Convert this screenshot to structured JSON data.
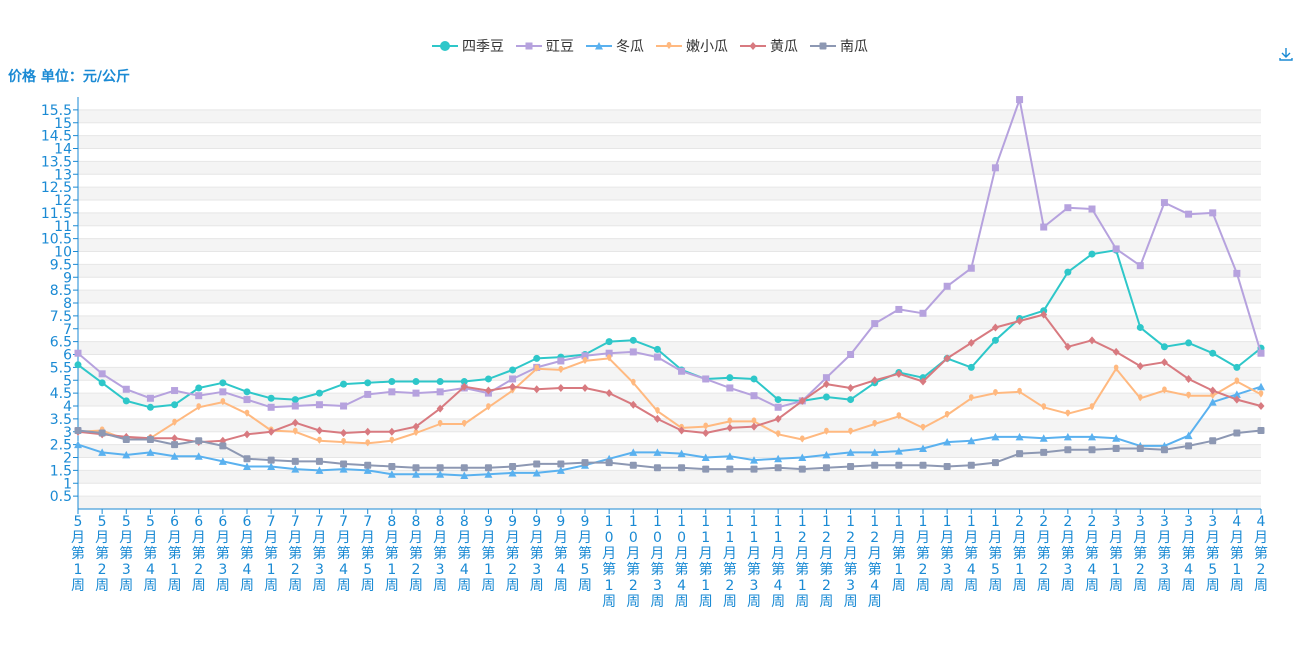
{
  "unit_label": "价格 单位：元/公斤",
  "download_icon": "download-icon",
  "colors": {
    "axis": "#1a8ad4",
    "grid_band": "#f4f4f4",
    "grid_line": "#e6e6e6"
  },
  "chart_data": {
    "type": "line",
    "title": "",
    "xlabel": "",
    "ylabel": "价格 单位：元/公斤",
    "ylim": [
      0,
      16
    ],
    "yticks": [
      0.5,
      1,
      1.5,
      2,
      2.5,
      3,
      3.5,
      4,
      4.5,
      5,
      5.5,
      6,
      6.5,
      7,
      7.5,
      8,
      8.5,
      9,
      9.5,
      10,
      10.5,
      11,
      11.5,
      12,
      12.5,
      13,
      13.5,
      14,
      14.5,
      15,
      15.5
    ],
    "grid": true,
    "legend_position": "top-center",
    "categories": [
      "5月第1周",
      "5月第2周",
      "5月第3周",
      "5月第4周",
      "6月第1周",
      "6月第2周",
      "6月第3周",
      "6月第4周",
      "7月第1周",
      "7月第2周",
      "7月第3周",
      "7月第4周",
      "7月第5周",
      "8月第1周",
      "8月第2周",
      "8月第3周",
      "8月第4周",
      "9月第1周",
      "9月第2周",
      "9月第3周",
      "9月第4周",
      "9月第5周",
      "10月第1周",
      "10月第2周",
      "10月第3周",
      "10月第4周",
      "11月第1周",
      "11月第2周",
      "11月第3周",
      "11月第4周",
      "12月第1周",
      "12月第2周",
      "12月第3周",
      "12月第4周",
      "1月第1周",
      "1月第2周",
      "1月第3周",
      "1月第4周",
      "1月第5周",
      "2月第1周",
      "2月第2周",
      "2月第3周",
      "2月第4周",
      "3月第1周",
      "3月第2周",
      "3月第3周",
      "3月第4周",
      "3月第5周",
      "4月第1周",
      "4月第2周"
    ],
    "series": [
      {
        "name": "四季豆",
        "color": "#2ec7c9",
        "marker": "circle",
        "values": [
          5.6,
          4.9,
          4.2,
          3.95,
          4.05,
          4.7,
          4.9,
          4.55,
          4.3,
          4.25,
          4.5,
          4.85,
          4.9,
          4.95,
          4.95,
          4.95,
          4.95,
          5.05,
          5.4,
          5.85,
          5.9,
          6.0,
          6.5,
          6.55,
          6.2,
          5.4,
          5.05,
          5.1,
          5.05,
          4.25,
          4.2,
          4.35,
          4.25,
          4.9,
          5.3,
          5.1,
          5.85,
          5.5,
          6.55,
          7.4,
          7.7,
          9.2,
          9.9,
          10.05,
          7.05,
          6.3,
          6.45,
          6.05,
          5.5,
          6.25
        ]
      },
      {
        "name": "豇豆",
        "color": "#b6a2de",
        "marker": "rect",
        "values": [
          6.05,
          5.25,
          4.65,
          4.3,
          4.6,
          4.4,
          4.55,
          4.25,
          3.95,
          4.0,
          4.05,
          4.0,
          4.45,
          4.55,
          4.5,
          4.55,
          4.7,
          4.5,
          5.05,
          5.5,
          5.75,
          5.95,
          6.05,
          6.1,
          5.9,
          5.35,
          5.05,
          4.7,
          4.4,
          3.95,
          4.2,
          5.1,
          6.0,
          7.2,
          7.75,
          7.6,
          8.65,
          9.35,
          13.25,
          15.9,
          10.95,
          11.7,
          11.65,
          10.1,
          9.45,
          11.9,
          11.45,
          11.5,
          9.15,
          6.05
        ]
      },
      {
        "name": "冬瓜",
        "color": "#5ab1ef",
        "marker": "triangle",
        "values": [
          2.5,
          2.2,
          2.1,
          2.2,
          2.05,
          2.05,
          1.85,
          1.65,
          1.65,
          1.55,
          1.5,
          1.55,
          1.5,
          1.35,
          1.35,
          1.35,
          1.3,
          1.35,
          1.4,
          1.4,
          1.5,
          1.7,
          1.95,
          2.2,
          2.2,
          2.15,
          2.0,
          2.05,
          1.9,
          1.95,
          2.0,
          2.1,
          2.2,
          2.2,
          2.25,
          2.35,
          2.6,
          2.65,
          2.8,
          2.8,
          2.75,
          2.8,
          2.8,
          2.75,
          2.45,
          2.45,
          2.85,
          4.15,
          4.45,
          4.75
        ]
      },
      {
        "name": "嫩小瓜",
        "color": "#ffb980",
        "marker": "droplet",
        "values": [
          3.0,
          3.05,
          2.7,
          2.75,
          3.35,
          3.95,
          4.15,
          3.7,
          3.05,
          3.0,
          2.65,
          2.6,
          2.55,
          2.65,
          2.95,
          3.3,
          3.3,
          3.95,
          4.6,
          5.45,
          5.4,
          5.75,
          5.85,
          4.9,
          3.8,
          3.15,
          3.2,
          3.4,
          3.4,
          2.9,
          2.7,
          3.0,
          3.0,
          3.3,
          3.6,
          3.15,
          3.65,
          4.3,
          4.5,
          4.55,
          3.95,
          3.7,
          3.95,
          5.45,
          4.3,
          4.6,
          4.4,
          4.4,
          4.95,
          4.45
        ]
      },
      {
        "name": "黄瓜",
        "color": "#d87a80",
        "marker": "diamond",
        "values": [
          3.0,
          2.9,
          2.8,
          2.75,
          2.75,
          2.6,
          2.65,
          2.9,
          3.0,
          3.35,
          3.05,
          2.95,
          3.0,
          3.0,
          3.2,
          3.9,
          4.75,
          4.6,
          4.75,
          4.65,
          4.7,
          4.7,
          4.5,
          4.05,
          3.5,
          3.05,
          2.95,
          3.15,
          3.2,
          3.5,
          4.2,
          4.85,
          4.7,
          5.0,
          5.25,
          4.95,
          5.85,
          6.45,
          7.05,
          7.3,
          7.55,
          6.3,
          6.55,
          6.1,
          5.55,
          5.7,
          5.05,
          4.6,
          4.25,
          4.0
        ]
      },
      {
        "name": "南瓜",
        "color": "#8d98b3",
        "marker": "emptyRect",
        "values": [
          3.05,
          2.95,
          2.7,
          2.7,
          2.5,
          2.65,
          2.45,
          1.95,
          1.9,
          1.85,
          1.85,
          1.75,
          1.7,
          1.65,
          1.6,
          1.6,
          1.6,
          1.6,
          1.65,
          1.75,
          1.75,
          1.8,
          1.8,
          1.7,
          1.6,
          1.6,
          1.55,
          1.55,
          1.55,
          1.6,
          1.55,
          1.6,
          1.65,
          1.7,
          1.7,
          1.7,
          1.65,
          1.7,
          1.8,
          2.15,
          2.2,
          2.3,
          2.3,
          2.35,
          2.35,
          2.3,
          2.45,
          2.65,
          2.95,
          3.05
        ]
      }
    ]
  }
}
